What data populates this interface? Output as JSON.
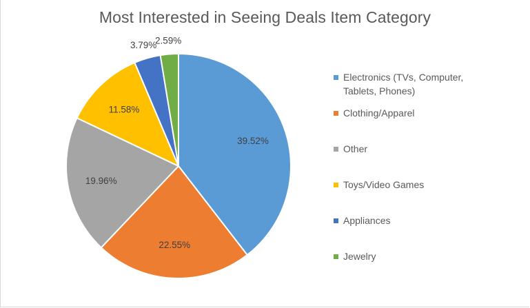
{
  "chart_data": {
    "type": "pie",
    "title": "Most Interested in Seeing Deals Item Category",
    "legend_position": "right",
    "slices": [
      {
        "label": "Electronics (TVs, Computer, Tablets, Phones)",
        "legend_lines": [
          "Electronics (TVs, Computer,",
          "Tablets, Phones)"
        ],
        "value": 39.52,
        "value_label": "39.52%",
        "color": "#5b9bd5"
      },
      {
        "label": "Clothing/Apparel",
        "legend_lines": [
          "Clothing/Apparel"
        ],
        "value": 22.55,
        "value_label": "22.55%",
        "color": "#ed7d31"
      },
      {
        "label": "Other",
        "legend_lines": [
          "Other"
        ],
        "value": 19.96,
        "value_label": "19.96%",
        "color": "#a5a5a5"
      },
      {
        "label": "Toys/Video Games",
        "legend_lines": [
          "Toys/Video Games"
        ],
        "value": 11.58,
        "value_label": "11.58%",
        "color": "#ffc000"
      },
      {
        "label": "Appliances",
        "legend_lines": [
          "Appliances"
        ],
        "value": 3.79,
        "value_label": "3.79%",
        "color": "#4472c4"
      },
      {
        "label": "Jewelry",
        "legend_lines": [
          "Jewelry"
        ],
        "value": 2.59,
        "value_label": "2.59%",
        "color": "#70ad47"
      }
    ]
  }
}
